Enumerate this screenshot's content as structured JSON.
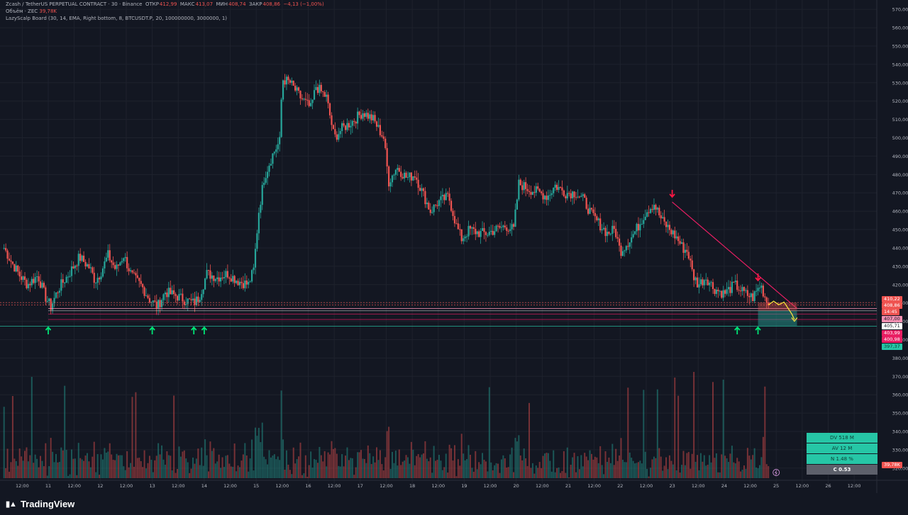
{
  "header": {
    "symbol_line": "Zcash / TetherUS PERPETUAL CONTRACT · 30 · Binance",
    "open_label": "ОТКР",
    "open_value": "412,99",
    "high_label": "МАКС",
    "high_value": "413,07",
    "low_label": "МИН",
    "low_value": "408,74",
    "close_label": "ЗАКР",
    "close_value": "408,86",
    "change_value": "−4,13 (−1,00%)",
    "volume_label": "Объём · ZEC",
    "volume_value": "39,78K",
    "indicator_line": "LazyScalp Board (30, 14, EMA, Right bottom, 8, BTCUSDT.P, 20, 100000000, 3000000, 1)"
  },
  "price_tags": {
    "t410_22": "410,22",
    "t408_86": "408,86",
    "t_time": "14:45",
    "t407_00": "407,00",
    "t405_71": "405,71",
    "t403_99": "403,99",
    "t400_98": "400,98",
    "t397": "397,37",
    "t_volume": "39,78K"
  },
  "stats_board": {
    "dv": "DV 518 M",
    "av": "AV 12 M",
    "n": "N 1.48 %",
    "c": "C  0.53"
  },
  "branding": {
    "name": "TradingView"
  },
  "colors": {
    "bull": "#26a69a",
    "bear": "#ef5350",
    "trendline": "#e91e63",
    "level": "#f48fb1",
    "arrow_up": "#00e676",
    "arrow_down": "#ff1744",
    "projection": "#ffeb3b",
    "stats": "#26c6a6",
    "background": "#131722"
  },
  "chart_data": {
    "type": "candlestick",
    "y_axis": {
      "min": 318,
      "max": 572,
      "ticks": [
        "570,00",
        "560,00",
        "550,00",
        "540,00",
        "530,00",
        "520,00",
        "510,00",
        "500,00",
        "490,00",
        "480,00",
        "470,00",
        "460,00",
        "450,00",
        "440,00",
        "430,00",
        "420,00",
        "410,00",
        "400,00",
        "390,00",
        "380,00",
        "370,00",
        "360,00",
        "350,00",
        "340,00",
        "330,00",
        "320,00"
      ],
      "tick_values": [
        570,
        560,
        550,
        540,
        530,
        520,
        510,
        500,
        490,
        480,
        470,
        460,
        450,
        440,
        430,
        420,
        410,
        400,
        390,
        380,
        370,
        360,
        350,
        340,
        330,
        320
      ]
    },
    "x_axis": {
      "labels": [
        "12:00",
        "11",
        "12:00",
        "12",
        "12:00",
        "13",
        "12:00",
        "14",
        "12:00",
        "15",
        "12:00",
        "16",
        "12:00",
        "17",
        "12:00",
        "18",
        "12:00",
        "19",
        "12:00",
        "20",
        "12:00",
        "21",
        "12:00",
        "22",
        "12:00",
        "23",
        "12:00",
        "24",
        "12:00",
        "25",
        "12:00",
        "26",
        "12:00"
      ],
      "day_index": [
        -0.5,
        0,
        0.5,
        1,
        1.5,
        2,
        2.5,
        3,
        3.5,
        4,
        4.5,
        5,
        5.5,
        6,
        6.5,
        7,
        7.5,
        8,
        8.5,
        9,
        9.5,
        10,
        10.5,
        11,
        11.5,
        12,
        12.5,
        13,
        13.5,
        14,
        14.5,
        15,
        15.5
      ]
    },
    "price_path": [
      [
        -0.85,
        440
      ],
      [
        -0.7,
        432
      ],
      [
        -0.55,
        425
      ],
      [
        -0.4,
        420
      ],
      [
        -0.2,
        425
      ],
      [
        -0.05,
        413
      ],
      [
        0.05,
        408
      ],
      [
        0.2,
        418
      ],
      [
        0.4,
        426
      ],
      [
        0.6,
        435
      ],
      [
        0.8,
        429
      ],
      [
        0.9,
        422
      ],
      [
        1.0,
        426
      ],
      [
        1.15,
        436
      ],
      [
        1.3,
        428
      ],
      [
        1.45,
        436
      ],
      [
        1.6,
        425
      ],
      [
        1.8,
        419
      ],
      [
        1.95,
        412
      ],
      [
        2.1,
        408
      ],
      [
        2.25,
        416
      ],
      [
        2.45,
        414
      ],
      [
        2.6,
        412
      ],
      [
        2.8,
        410
      ],
      [
        2.9,
        413
      ],
      [
        3.05,
        426
      ],
      [
        3.25,
        424
      ],
      [
        3.45,
        426
      ],
      [
        3.65,
        422
      ],
      [
        3.85,
        420
      ],
      [
        3.95,
        428
      ],
      [
        4.05,
        460
      ],
      [
        4.15,
        478
      ],
      [
        4.3,
        490
      ],
      [
        4.45,
        498
      ],
      [
        4.5,
        532
      ],
      [
        4.65,
        530
      ],
      [
        4.85,
        522
      ],
      [
        5.05,
        516
      ],
      [
        5.15,
        528
      ],
      [
        5.35,
        522
      ],
      [
        5.5,
        500
      ],
      [
        5.65,
        505
      ],
      [
        5.85,
        509
      ],
      [
        6.05,
        514
      ],
      [
        6.25,
        510
      ],
      [
        6.45,
        500
      ],
      [
        6.55,
        476
      ],
      [
        6.7,
        484
      ],
      [
        6.9,
        478
      ],
      [
        7.05,
        480
      ],
      [
        7.2,
        470
      ],
      [
        7.35,
        460
      ],
      [
        7.5,
        465
      ],
      [
        7.7,
        468
      ],
      [
        7.85,
        452
      ],
      [
        7.95,
        445
      ],
      [
        8.1,
        450
      ],
      [
        8.3,
        448
      ],
      [
        8.45,
        448
      ],
      [
        8.6,
        450
      ],
      [
        8.8,
        452
      ],
      [
        8.95,
        450
      ],
      [
        9.05,
        475
      ],
      [
        9.25,
        472
      ],
      [
        9.45,
        470
      ],
      [
        9.6,
        468
      ],
      [
        9.75,
        474
      ],
      [
        9.95,
        470
      ],
      [
        10.15,
        470
      ],
      [
        10.3,
        466
      ],
      [
        10.45,
        458
      ],
      [
        10.6,
        453
      ],
      [
        10.75,
        448
      ],
      [
        10.9,
        450
      ],
      [
        11.0,
        438
      ],
      [
        11.2,
        445
      ],
      [
        11.35,
        452
      ],
      [
        11.5,
        460
      ],
      [
        11.65,
        464
      ],
      [
        11.8,
        455
      ],
      [
        11.95,
        450
      ],
      [
        12.1,
        445
      ],
      [
        12.2,
        440
      ],
      [
        12.3,
        438
      ],
      [
        12.4,
        425
      ],
      [
        12.5,
        420
      ],
      [
        12.65,
        424
      ],
      [
        12.8,
        418
      ],
      [
        13.0,
        415
      ],
      [
        13.2,
        420
      ],
      [
        13.4,
        415
      ],
      [
        13.55,
        413
      ],
      [
        13.7,
        420
      ],
      [
        13.8,
        412
      ],
      [
        13.85,
        408.86
      ]
    ],
    "volume_axis_baseline": 0,
    "volume_last": "39,78K",
    "trendline": {
      "from": {
        "x": 12.0,
        "y": 465
      },
      "to": {
        "x": 14.4,
        "y": 407
      }
    },
    "levels": [
      410.22,
      408.86,
      407.0,
      405.71,
      403.99,
      400.98,
      397.37
    ],
    "up_arrows_days": [
      0.0,
      2.0,
      2.8,
      3.0,
      13.25,
      13.65
    ],
    "down_arrows_days": [
      12.0,
      13.65
    ],
    "projection_zone": {
      "x_from": 13.65,
      "x_to": 14.4,
      "y_top": 410.22,
      "y_mid": 405.71,
      "y_bottom": 397.37
    }
  }
}
